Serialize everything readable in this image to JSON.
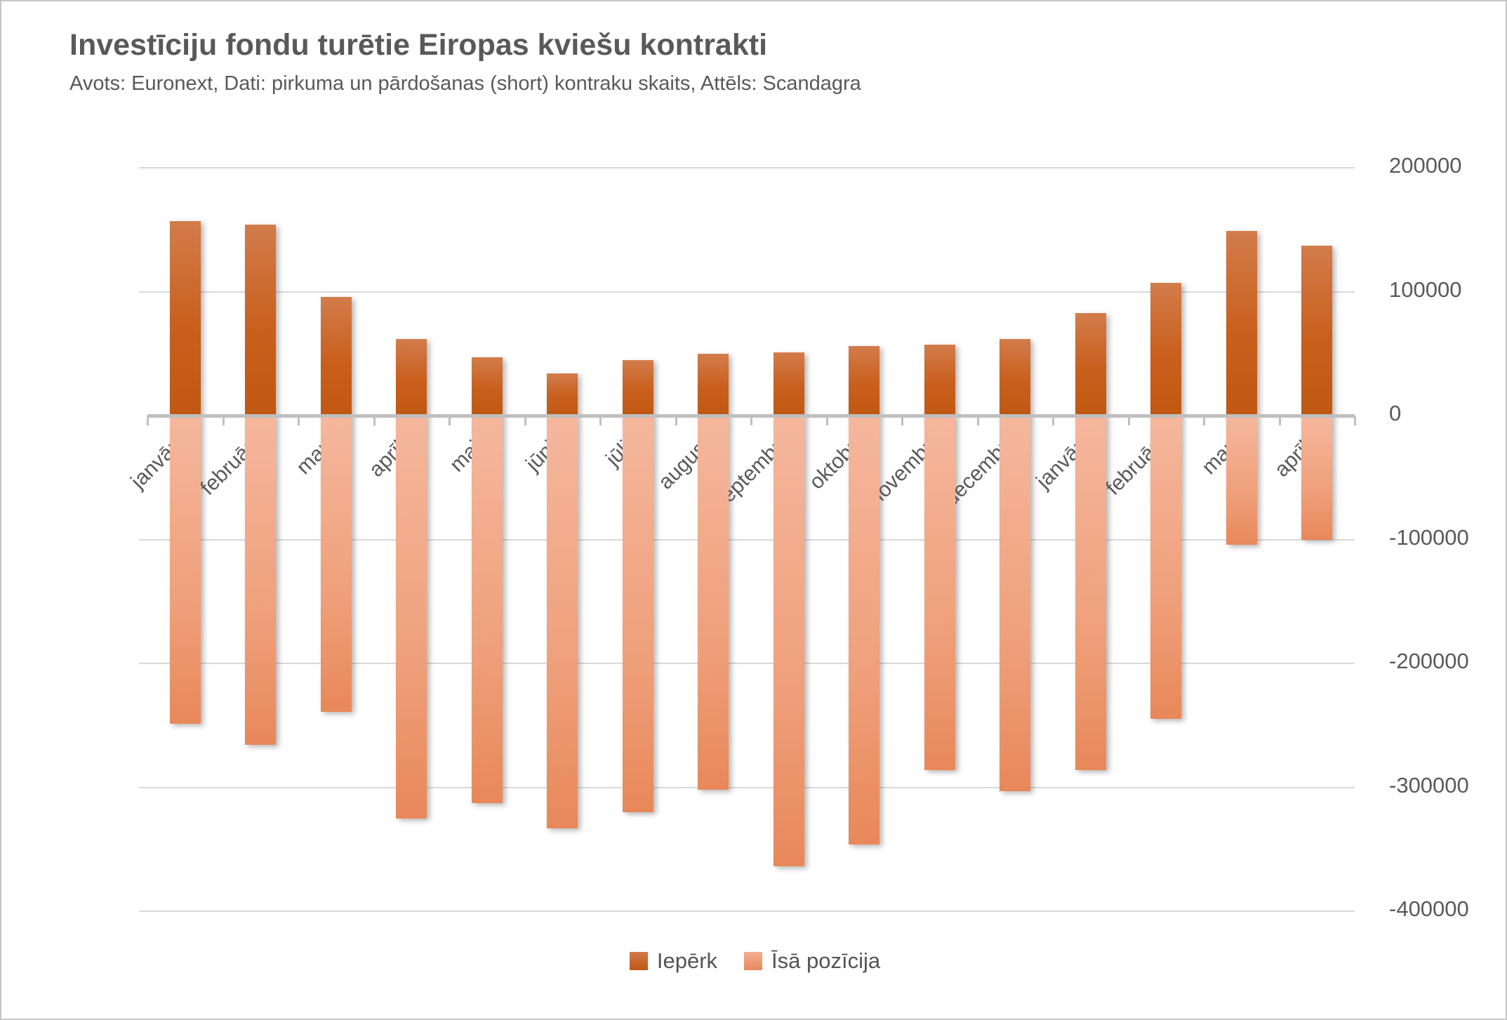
{
  "chart_data": {
    "type": "bar",
    "title": "Investīciju fondu turētie Eiropas kviešu kontrakti",
    "subtitle": "Avots: Euronext, Dati: pirkuma un pārdošanas (short) kontraku skaits, Attēls: Scandagra",
    "categories": [
      "janvāris",
      "februāris",
      "marts",
      "aprīlis",
      "maijs",
      "jūnijs",
      "jūlijs",
      "augusts",
      "septembris",
      "oktobris",
      "novembris",
      "decembris",
      "janvāris",
      "februāris",
      "marts",
      "aprīlis"
    ],
    "series": [
      {
        "name": "Iepērk",
        "color_top": "#d27c4b",
        "color_bottom": "#c05812",
        "values": [
          157000,
          154000,
          96000,
          62000,
          47000,
          34000,
          45000,
          50000,
          51000,
          56000,
          57000,
          62000,
          83000,
          107000,
          149000,
          137000
        ]
      },
      {
        "name": "Īsā pozīcija",
        "color_top": "#f5b79d",
        "color_bottom": "#e8885a",
        "values": [
          -249000,
          -266000,
          -239000,
          -325000,
          -313000,
          -333000,
          -320000,
          -302000,
          -364000,
          -346000,
          -286000,
          -303000,
          -286000,
          -245000,
          -104000,
          -100000
        ]
      }
    ],
    "y_axis": {
      "min": -400000,
      "max": 200000,
      "step": 100000,
      "side": "right",
      "ticks": [
        "200000",
        "100000",
        "0",
        "-100000",
        "-200000",
        "-300000",
        "-400000"
      ]
    },
    "legend": {
      "position": "bottom"
    },
    "grid": true,
    "colors": {
      "text": "#595959",
      "gridline": "#d9d9d9",
      "axis": "#bfbfbf",
      "background": "#ffffff"
    }
  }
}
